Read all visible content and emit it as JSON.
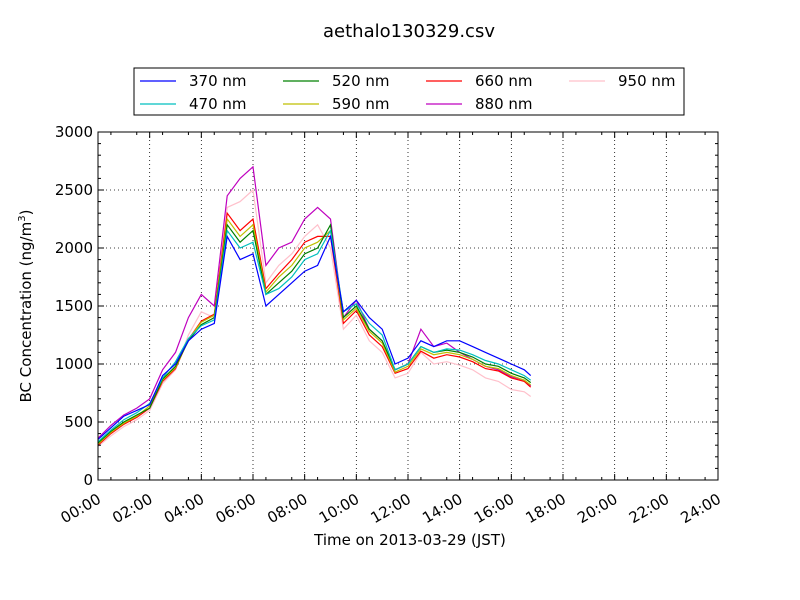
{
  "chart_data": {
    "type": "line",
    "title": "aethalo130329.csv",
    "xlabel": "Time on 2013-03-29 (JST)",
    "ylabel": "BC Concentration (ng/m³)",
    "ylabel_main": "BC Concentration (ng/m",
    "ylabel_sup": "3",
    "ylabel_end": ")",
    "xlim": [
      "00:00",
      "24:00"
    ],
    "ylim": [
      0,
      3000
    ],
    "x_ticks": [
      "00:00",
      "02:00",
      "04:00",
      "06:00",
      "08:00",
      "10:00",
      "12:00",
      "14:00",
      "16:00",
      "18:00",
      "20:00",
      "22:00",
      "24:00"
    ],
    "y_ticks": [
      0,
      500,
      1000,
      1500,
      2000,
      2500,
      3000
    ],
    "grid": true,
    "legend_position": "top, above plot",
    "x_hours": [
      0.0,
      0.5,
      1.0,
      1.5,
      2.0,
      2.5,
      3.0,
      3.5,
      4.0,
      4.5,
      5.0,
      5.5,
      6.0,
      6.5,
      7.0,
      7.5,
      8.0,
      8.5,
      9.0,
      9.5,
      10.0,
      10.5,
      11.0,
      11.5,
      12.0,
      12.5,
      13.0,
      13.5,
      14.0,
      14.5,
      15.0,
      15.5,
      16.0,
      16.5,
      16.75
    ],
    "series": [
      {
        "name": "370 nm",
        "color": "#0000ff",
        "values": [
          350,
          450,
          550,
          600,
          650,
          900,
          1000,
          1200,
          1300,
          1350,
          2100,
          1900,
          1950,
          1500,
          1600,
          1700,
          1800,
          1850,
          2100,
          1450,
          1550,
          1400,
          1300,
          1000,
          1050,
          1200,
          1150,
          1200,
          1200,
          1150,
          1100,
          1050,
          1000,
          950,
          900
        ]
      },
      {
        "name": "470 nm",
        "color": "#00bfbf",
        "values": [
          330,
          430,
          520,
          580,
          660,
          880,
          1020,
          1220,
          1330,
          1380,
          2150,
          2000,
          2050,
          1600,
          1650,
          1750,
          1900,
          1950,
          2150,
          1450,
          1520,
          1350,
          1250,
          950,
          1000,
          1150,
          1100,
          1130,
          1120,
          1080,
          1030,
          1000,
          950,
          900,
          860
        ]
      },
      {
        "name": "520 nm",
        "color": "#008000",
        "values": [
          320,
          420,
          500,
          560,
          620,
          870,
          980,
          1200,
          1340,
          1400,
          2200,
          2050,
          2150,
          1600,
          1700,
          1800,
          1950,
          2000,
          2200,
          1400,
          1500,
          1300,
          1200,
          950,
          1000,
          1150,
          1100,
          1120,
          1100,
          1060,
          1000,
          980,
          920,
          880,
          840
        ]
      },
      {
        "name": "590 nm",
        "color": "#bfbf00",
        "values": [
          310,
          410,
          490,
          550,
          640,
          860,
          970,
          1210,
          1360,
          1420,
          2250,
          2100,
          2200,
          1620,
          1750,
          1850,
          2000,
          2050,
          2150,
          1380,
          1480,
          1280,
          1180,
          930,
          980,
          1130,
          1080,
          1100,
          1080,
          1040,
          980,
          960,
          900,
          860,
          820
        ]
      },
      {
        "name": "660 nm",
        "color": "#ff0000",
        "values": [
          300,
          400,
          480,
          540,
          620,
          850,
          960,
          1210,
          1370,
          1430,
          2300,
          2150,
          2250,
          1650,
          1780,
          1900,
          2050,
          2100,
          2100,
          1350,
          1460,
          1250,
          1150,
          920,
          960,
          1110,
          1050,
          1080,
          1060,
          1020,
          960,
          940,
          880,
          850,
          800
        ]
      },
      {
        "name": "880 nm",
        "color": "#bf00bf",
        "values": [
          360,
          470,
          560,
          620,
          700,
          950,
          1100,
          1400,
          1600,
          1500,
          2450,
          2600,
          2700,
          1850,
          2000,
          2050,
          2250,
          2350,
          2250,
          1400,
          1550,
          1300,
          1200,
          950,
          1000,
          1300,
          1150,
          1180,
          1100,
          1040,
          980,
          950,
          890,
          860,
          810
        ]
      },
      {
        "name": "950 nm",
        "color": "#ffc0cb",
        "values": [
          290,
          380,
          460,
          520,
          600,
          830,
          950,
          1250,
          1450,
          1400,
          2350,
          2400,
          2500,
          1700,
          1850,
          1950,
          2100,
          2200,
          2000,
          1300,
          1420,
          1200,
          1100,
          880,
          920,
          1100,
          1000,
          1020,
          990,
          950,
          880,
          850,
          780,
          760,
          720
        ]
      }
    ]
  }
}
